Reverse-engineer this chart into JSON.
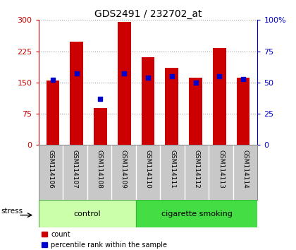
{
  "title": "GDS2491 / 232702_at",
  "samples": [
    "GSM114106",
    "GSM114107",
    "GSM114108",
    "GSM114109",
    "GSM114110",
    "GSM114111",
    "GSM114112",
    "GSM114113",
    "GSM114114"
  ],
  "counts": [
    155,
    248,
    88,
    295,
    210,
    185,
    162,
    232,
    162
  ],
  "percentile_ranks": [
    52,
    57,
    37,
    57,
    54,
    55,
    50,
    55,
    53
  ],
  "group_labels": [
    "control",
    "cigarette smoking"
  ],
  "bar_color": "#cc0000",
  "dot_color": "#0000cc",
  "yticks_left": [
    0,
    75,
    150,
    225,
    300
  ],
  "yticks_right": [
    0,
    25,
    50,
    75,
    100
  ],
  "ylim_left": [
    0,
    300
  ],
  "ylim_right": [
    0,
    100
  ],
  "bg_color": "#ffffff",
  "axis_color_left": "#cc0000",
  "axis_color_right": "#0000cc",
  "stress_label": "stress",
  "bar_width": 0.55,
  "grid_color": "#999999",
  "tick_label_area_color": "#c8c8c8",
  "ctrl_color": "#ccffaa",
  "cig_color": "#44dd44",
  "legend_count_label": "count",
  "legend_pct_label": "percentile rank within the sample"
}
